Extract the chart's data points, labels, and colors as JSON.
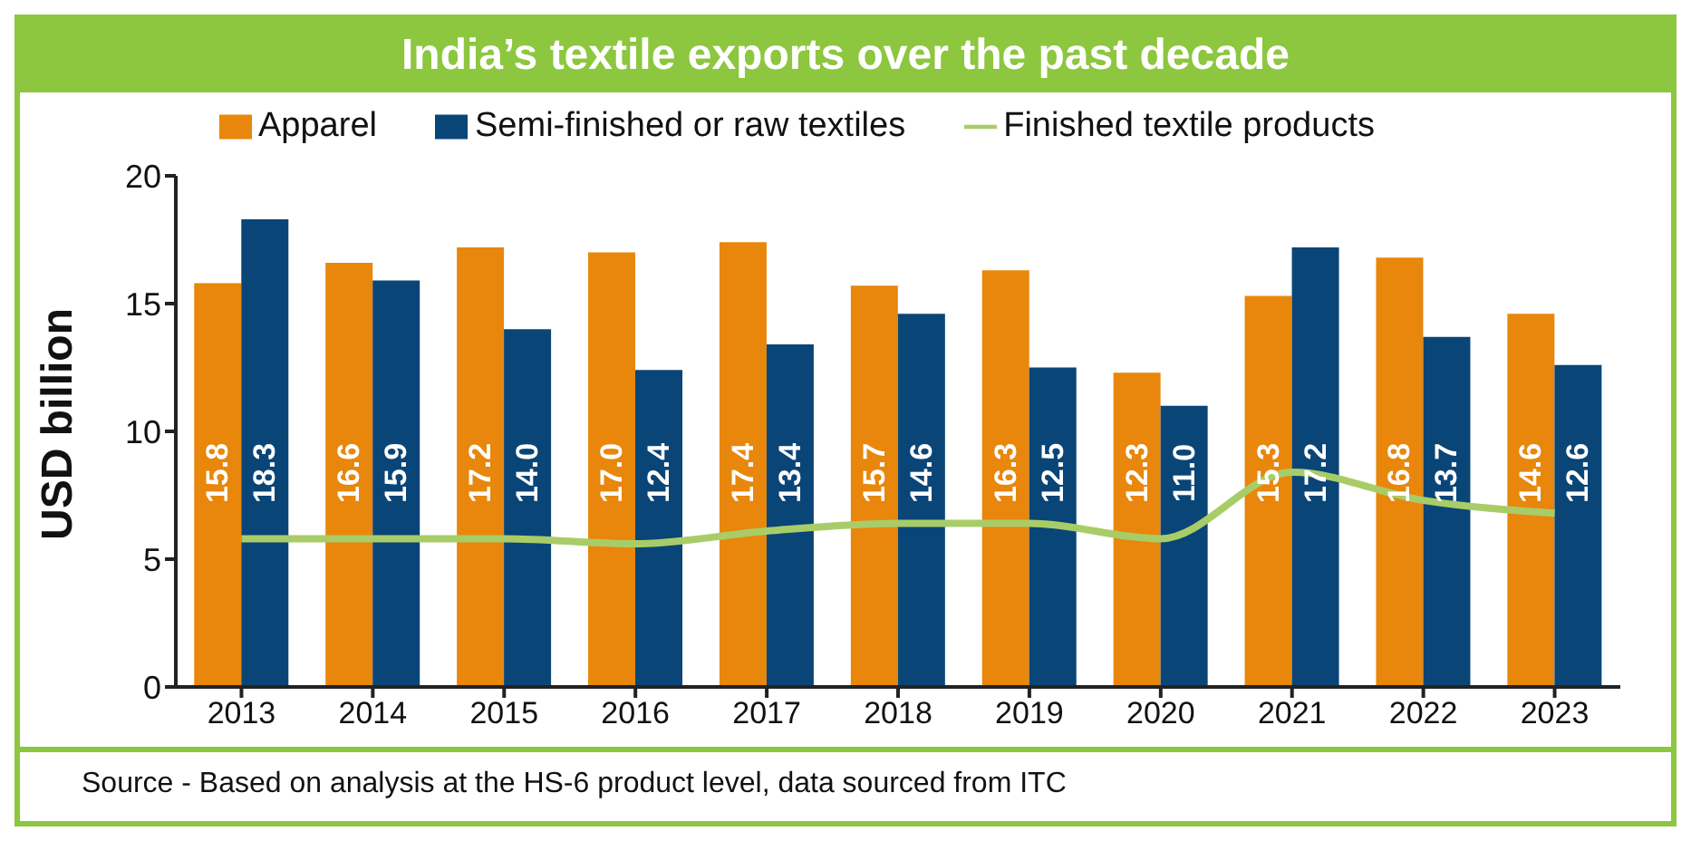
{
  "chart_data": {
    "type": "bar",
    "title": "India’s textile exports over the past decade",
    "ylabel": "USD billion",
    "categories": [
      "2013",
      "2014",
      "2015",
      "2016",
      "2017",
      "2018",
      "2019",
      "2020",
      "2021",
      "2022",
      "2023"
    ],
    "series": [
      {
        "name": "Apparel",
        "color": "#e8870b",
        "values": [
          15.8,
          16.6,
          17.2,
          17.0,
          17.4,
          15.7,
          16.3,
          12.3,
          15.3,
          16.8,
          14.6
        ],
        "value_labels": [
          "15.8",
          "16.6",
          "17.2",
          "17.0",
          "17.4",
          "15.7",
          "16.3",
          "12.3",
          "15.3",
          "16.8",
          "14.6"
        ]
      },
      {
        "name": "Semi-finished or raw textiles",
        "color": "#0a4577",
        "values": [
          18.3,
          15.9,
          14.0,
          12.4,
          13.4,
          14.6,
          12.5,
          11.0,
          17.2,
          13.7,
          12.6
        ],
        "value_labels": [
          "18.3",
          "15.9",
          "14.0",
          "12.4",
          "13.4",
          "14.6",
          "12.5",
          "11.0",
          "17.2",
          "13.7",
          "12.6"
        ]
      },
      {
        "name": "Finished textile products",
        "type": "line",
        "color": "#a8cd68",
        "values": [
          5.8,
          5.8,
          5.8,
          5.6,
          6.1,
          6.4,
          6.4,
          5.8,
          8.4,
          7.3,
          6.8
        ]
      }
    ],
    "ylim": [
      0,
      20
    ],
    "yticks": [
      0,
      5,
      10,
      15,
      20
    ],
    "grid": false,
    "legend": "top",
    "marker": "none",
    "line_style": "solid",
    "annotations": [
      "Source - Based on analysis at the HS-6 product level, data sourced from ITC"
    ]
  }
}
